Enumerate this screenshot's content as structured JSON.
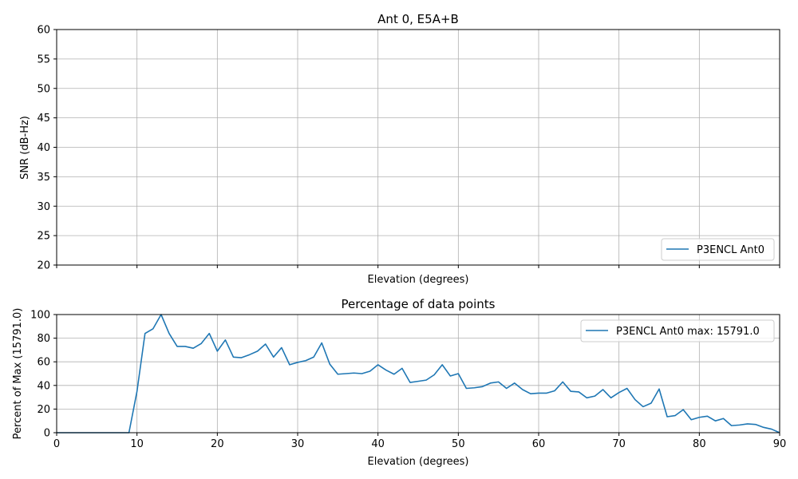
{
  "chart_data": [
    {
      "type": "line",
      "title": "Ant 0, E5A+B",
      "xlabel": "Elevation (degrees)",
      "ylabel": "SNR (dB-Hz)",
      "xlim": [
        0,
        90
      ],
      "ylim": [
        20,
        60
      ],
      "yticks": [
        "20",
        "25",
        "30",
        "35",
        "40",
        "45",
        "50",
        "55",
        "60"
      ],
      "xticks_labeled": false,
      "grid": true,
      "legend_position": "lower-right",
      "series": [
        {
          "name": "P3ENCL Ant0",
          "color": "#1f77b4",
          "x": [],
          "y": []
        }
      ]
    },
    {
      "type": "line",
      "title": "Percentage of data points",
      "xlabel": "Elevation (degrees)",
      "ylabel": "Percent of Max (15791.0)",
      "xlim": [
        0,
        90
      ],
      "ylim": [
        0,
        100
      ],
      "xticks": [
        "0",
        "10",
        "20",
        "30",
        "40",
        "50",
        "60",
        "70",
        "80",
        "90"
      ],
      "yticks": [
        "0",
        "20",
        "40",
        "60",
        "80",
        "100"
      ],
      "grid": true,
      "legend_position": "upper-right",
      "series": [
        {
          "name": "P3ENCL Ant0 max: 15791.0",
          "color": "#1f77b4",
          "x": [
            0,
            1,
            2,
            3,
            4,
            5,
            6,
            7,
            8,
            9,
            10,
            11,
            12,
            13,
            14,
            15,
            16,
            17,
            18,
            19,
            20,
            21,
            22,
            23,
            24,
            25,
            26,
            27,
            28,
            29,
            30,
            31,
            32,
            33,
            34,
            35,
            36,
            37,
            38,
            39,
            40,
            41,
            42,
            43,
            44,
            45,
            46,
            47,
            48,
            49,
            50,
            51,
            52,
            53,
            54,
            55,
            56,
            57,
            58,
            59,
            60,
            61,
            62,
            63,
            64,
            65,
            66,
            67,
            68,
            69,
            70,
            71,
            72,
            73,
            74,
            75,
            76,
            77,
            78,
            79,
            80,
            81,
            82,
            83,
            84,
            85,
            86,
            87,
            88,
            89,
            90
          ],
          "y": [
            0,
            0,
            0,
            0,
            0,
            0,
            0,
            0,
            0,
            0,
            35,
            84,
            88,
            100,
            84,
            73,
            73,
            71.5,
            75.5,
            84,
            69,
            78.5,
            64,
            63.5,
            66,
            69,
            75,
            64,
            72,
            57.5,
            59.5,
            61,
            64,
            76,
            58,
            49.5,
            50,
            50.5,
            50,
            52,
            57.5,
            53,
            49.5,
            54.5,
            42.5,
            43.5,
            44.5,
            49,
            57.5,
            48,
            50,
            37.5,
            38,
            39,
            42,
            43,
            37.5,
            42,
            36.5,
            33,
            33.5,
            33.5,
            35.5,
            43,
            35,
            34.5,
            29.5,
            31,
            36.5,
            29.5,
            34,
            37.5,
            28,
            22,
            25,
            37,
            13.5,
            14.5,
            19.5,
            11,
            13,
            14,
            10,
            12,
            6,
            6.5,
            7.5,
            7,
            4.5,
            3,
            0
          ]
        }
      ]
    }
  ]
}
